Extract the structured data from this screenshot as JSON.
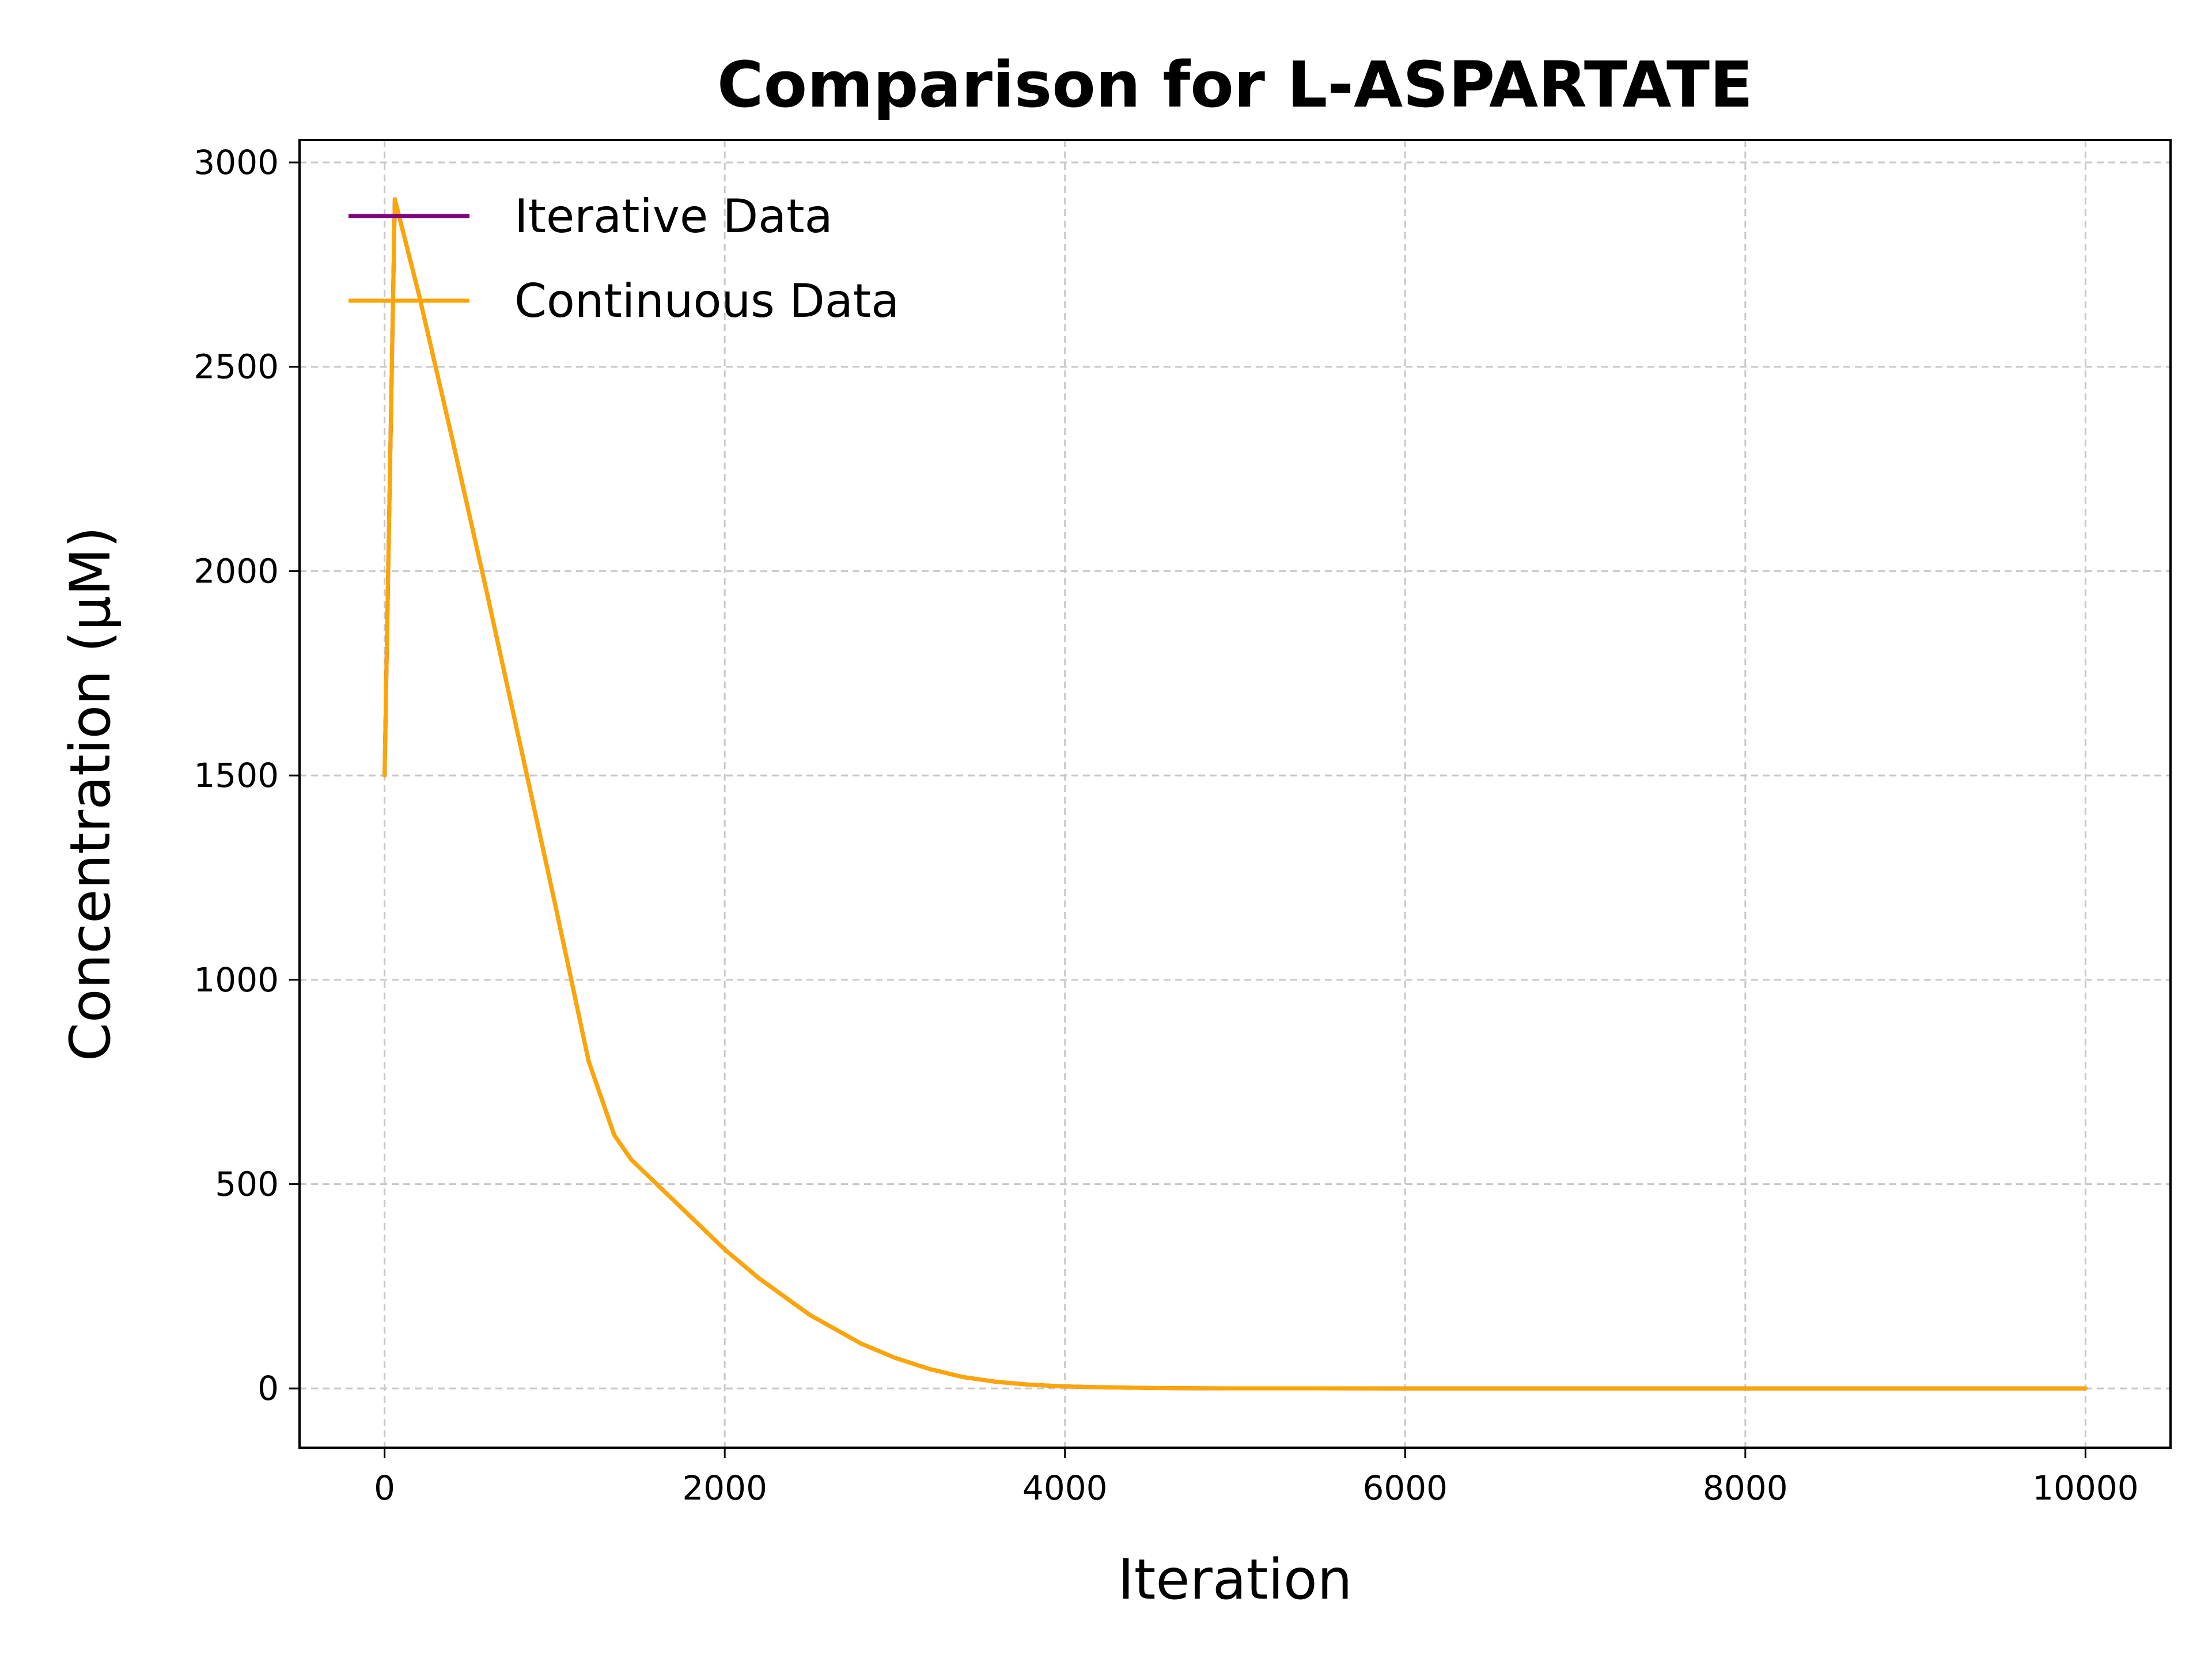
{
  "chart_data": {
    "type": "line",
    "title": "Comparison for L-ASPARTATE",
    "xlabel": "Iteration",
    "ylabel": "Concentration (μM)",
    "xlim": [
      -500,
      10500
    ],
    "ylim": [
      -145,
      3055
    ],
    "x_ticks": [
      0,
      2000,
      4000,
      6000,
      8000,
      10000
    ],
    "y_ticks": [
      0,
      500,
      1000,
      1500,
      2000,
      2500,
      3000
    ],
    "grid": true,
    "grid_style": "dashed",
    "legend_position": "upper left",
    "series": [
      {
        "name": "Iterative Data",
        "color": "#800080",
        "x": [
          0,
          60,
          200,
          400,
          600,
          800,
          1000,
          1200,
          1350,
          1450,
          1600,
          1800,
          2000,
          2200,
          2500,
          2800,
          3000,
          3200,
          3400,
          3600,
          3800,
          4000,
          4200,
          4500,
          4800,
          5000,
          6000,
          7000,
          8000,
          9000,
          10000
        ],
        "y": [
          1500,
          2910,
          2680,
          2320,
          1950,
          1570,
          1190,
          800,
          620,
          560,
          500,
          420,
          340,
          270,
          180,
          110,
          75,
          48,
          28,
          16,
          9,
          5,
          3,
          1,
          0.4,
          0.2,
          0,
          0,
          0,
          0,
          0
        ]
      },
      {
        "name": "Continuous Data",
        "color": "#FFA500",
        "x": [
          0,
          60,
          200,
          400,
          600,
          800,
          1000,
          1200,
          1350,
          1450,
          1600,
          1800,
          2000,
          2200,
          2500,
          2800,
          3000,
          3200,
          3400,
          3600,
          3800,
          4000,
          4200,
          4500,
          4800,
          5000,
          6000,
          7000,
          8000,
          9000,
          10000
        ],
        "y": [
          1500,
          2910,
          2680,
          2320,
          1950,
          1570,
          1190,
          800,
          620,
          560,
          500,
          420,
          340,
          270,
          180,
          110,
          75,
          48,
          28,
          16,
          9,
          5,
          3,
          1,
          0.4,
          0.2,
          0,
          0,
          0,
          0,
          0
        ]
      }
    ]
  }
}
